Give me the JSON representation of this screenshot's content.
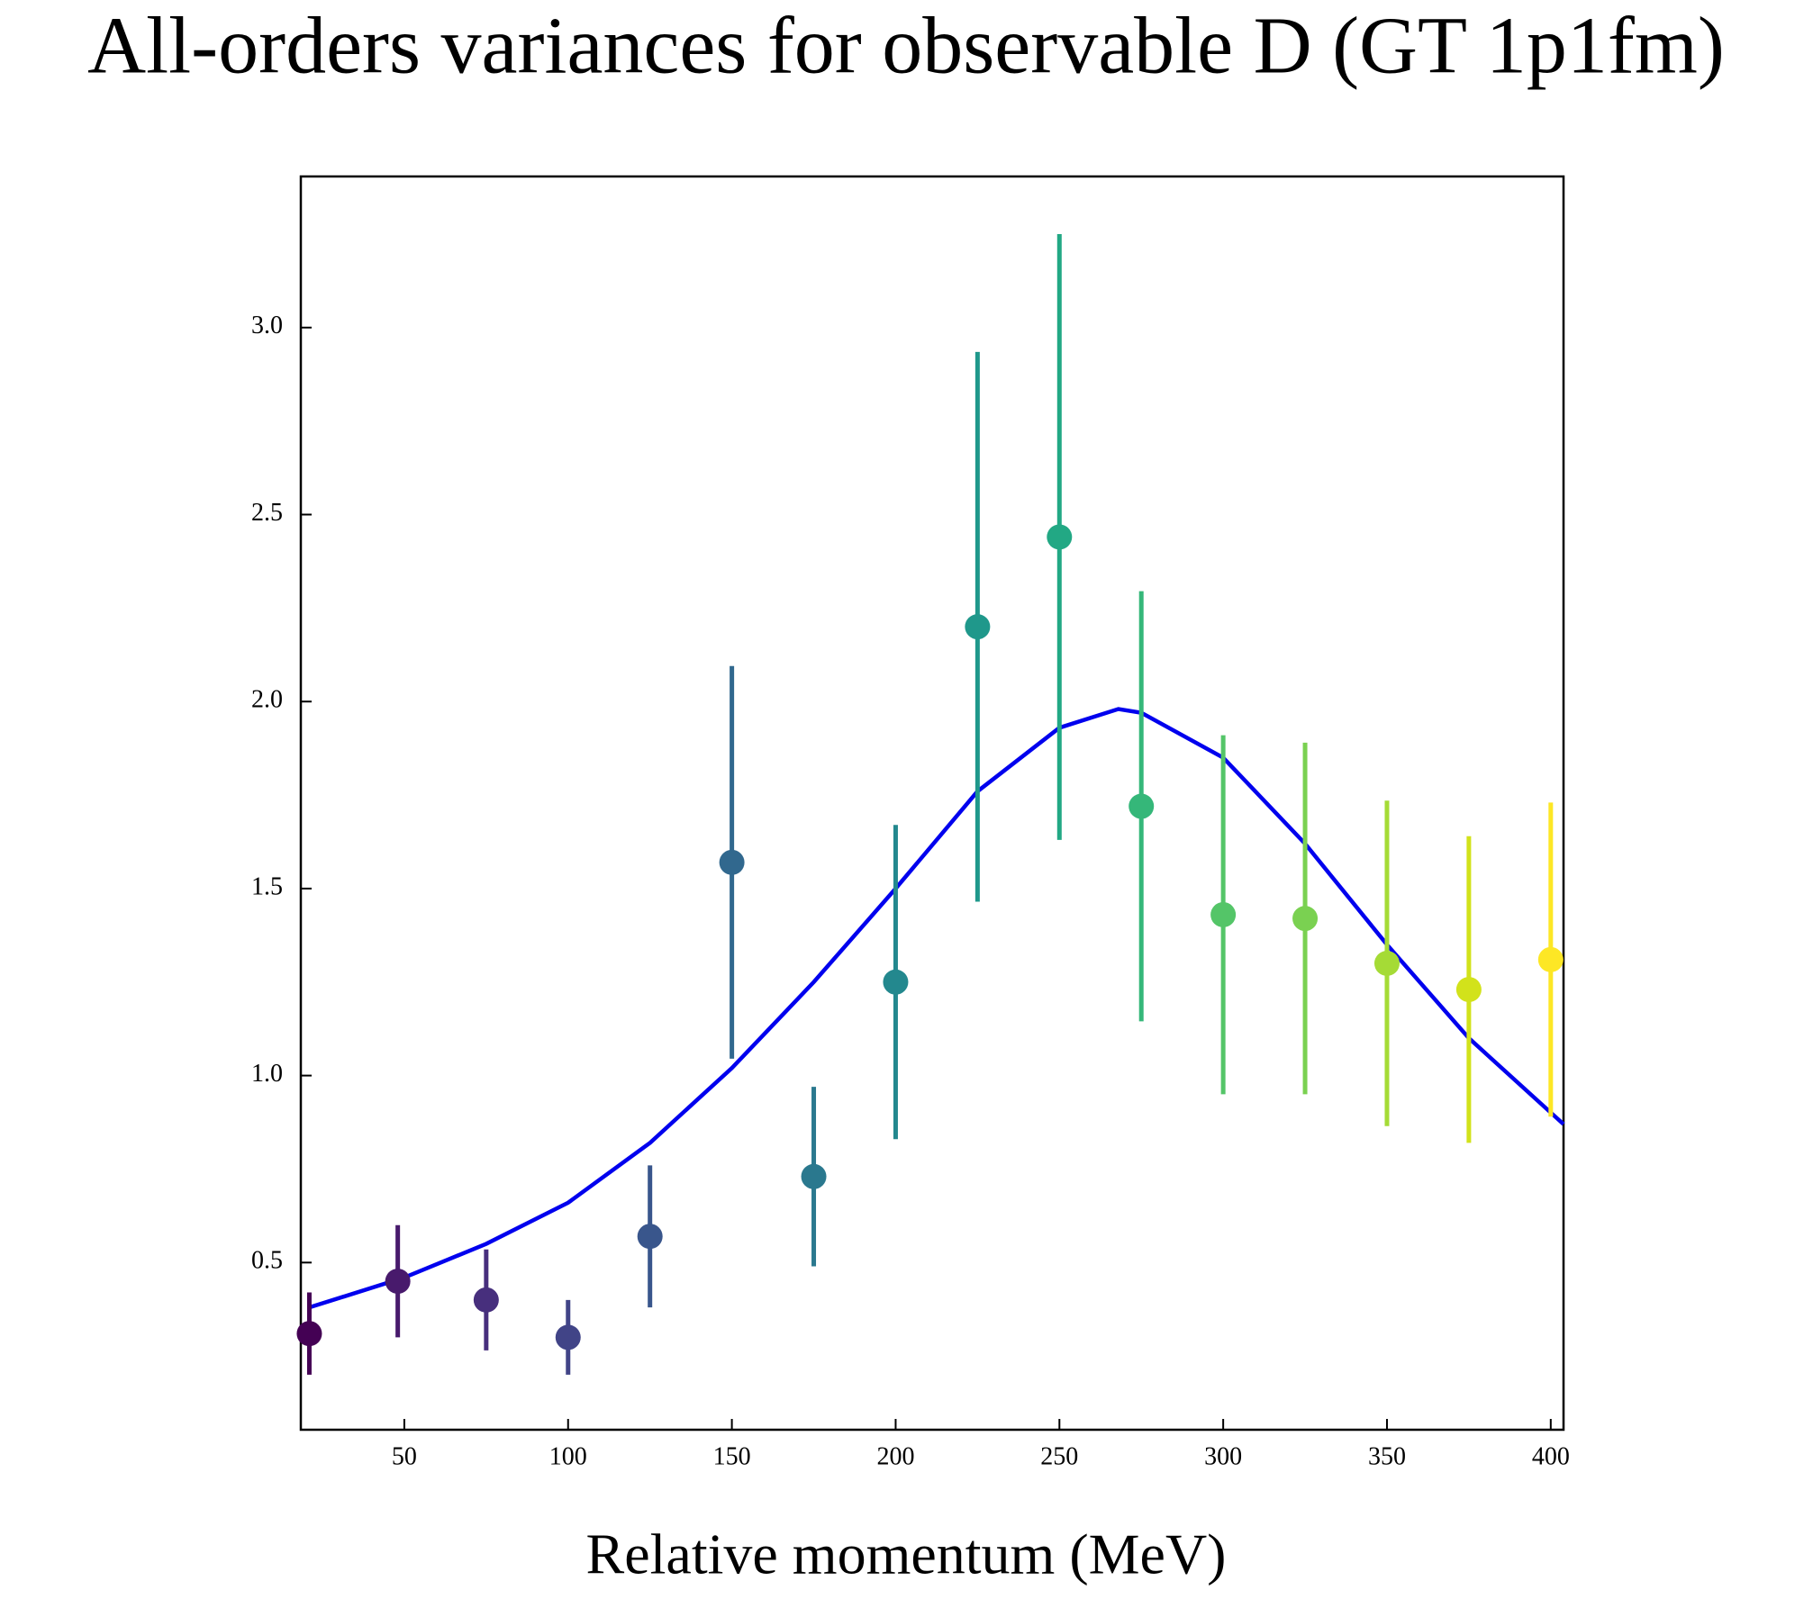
{
  "chart_data": {
    "type": "errorbar",
    "title": "All-orders variances for observable D (GT 1p1fm)",
    "x_label": "Relative momentum (MeV)",
    "x": [
      21,
      48,
      75,
      100,
      125,
      150,
      175,
      200,
      225,
      250,
      275,
      300,
      325,
      350,
      375,
      400
    ],
    "values": [
      0.31,
      0.45,
      0.4,
      0.3,
      0.57,
      1.57,
      0.73,
      1.25,
      2.2,
      2.44,
      1.72,
      1.43,
      1.42,
      1.3,
      1.23,
      1.31
    ],
    "errors": [
      0.11,
      0.15,
      0.135,
      0.1,
      0.19,
      0.525,
      0.24,
      0.42,
      0.735,
      0.81,
      0.575,
      0.48,
      0.47,
      0.435,
      0.41,
      0.42
    ],
    "colors": [
      "#440154",
      "#481a6c",
      "#472f7d",
      "#414487",
      "#39568c",
      "#31688e",
      "#2a788e",
      "#23888e",
      "#1f988b",
      "#22a884",
      "#35b779",
      "#54c568",
      "#7ad151",
      "#a5db36",
      "#d2e21b",
      "#fde725"
    ],
    "fit": {
      "type": "line",
      "color": "#0000ee",
      "x": [
        21,
        50,
        75,
        100,
        125,
        150,
        175,
        200,
        225,
        250,
        268,
        275,
        300,
        325,
        350,
        375,
        403.9
      ],
      "values": [
        0.38,
        0.46,
        0.55,
        0.66,
        0.82,
        1.02,
        1.25,
        1.5,
        1.76,
        1.93,
        1.98,
        1.97,
        1.85,
        1.62,
        1.35,
        1.1,
        0.87
      ]
    },
    "xlim": [
      18.4,
      403.9
    ],
    "ylim": [
      0.053,
      3.404
    ],
    "xticks": [
      50,
      100,
      150,
      200,
      250,
      300,
      350,
      400
    ],
    "yticks": [
      {
        "value": 0.5,
        "label": "0.5"
      },
      {
        "value": 1,
        "label": "1.0"
      },
      {
        "value": 1.5,
        "label": "1.5"
      },
      {
        "value": 2,
        "label": "2.0"
      },
      {
        "value": 2.5,
        "label": "2.5"
      },
      {
        "value": 3,
        "label": "3.0"
      }
    ]
  }
}
